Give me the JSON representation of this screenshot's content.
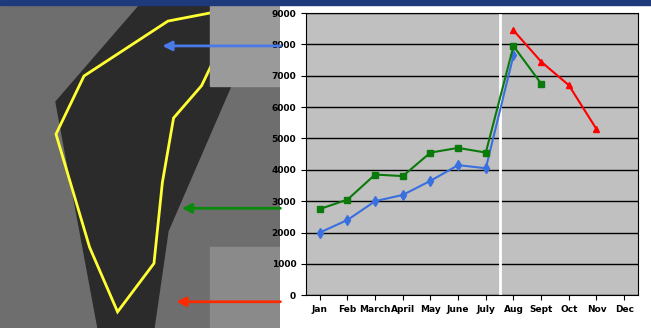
{
  "chart_data": {
    "type": "line",
    "categories": [
      "Jan",
      "Feb",
      "March",
      "April",
      "May",
      "June",
      "July",
      "Aug",
      "Sept",
      "Oct",
      "Nov",
      "Dec"
    ],
    "series": [
      {
        "color": "#3a6fe0",
        "marker": "diamond",
        "values": [
          2000,
          2400,
          3000,
          3200,
          3650,
          4150,
          4050,
          7650,
          null,
          null,
          null,
          null
        ]
      },
      {
        "color": "#0a7a0a",
        "marker": "square",
        "values": [
          2750,
          3050,
          3850,
          3800,
          4550,
          4700,
          4550,
          7950,
          6750,
          null,
          null,
          null
        ]
      },
      {
        "color": "#ff0000",
        "marker": "triangle",
        "values": [
          null,
          null,
          null,
          null,
          null,
          null,
          null,
          8450,
          7450,
          6700,
          5300,
          null
        ]
      }
    ],
    "ylim": [
      0,
      9000
    ],
    "yticks": [
      0,
      1000,
      2000,
      3000,
      4000,
      5000,
      6000,
      7000,
      8000,
      9000
    ],
    "grid": true
  }
}
